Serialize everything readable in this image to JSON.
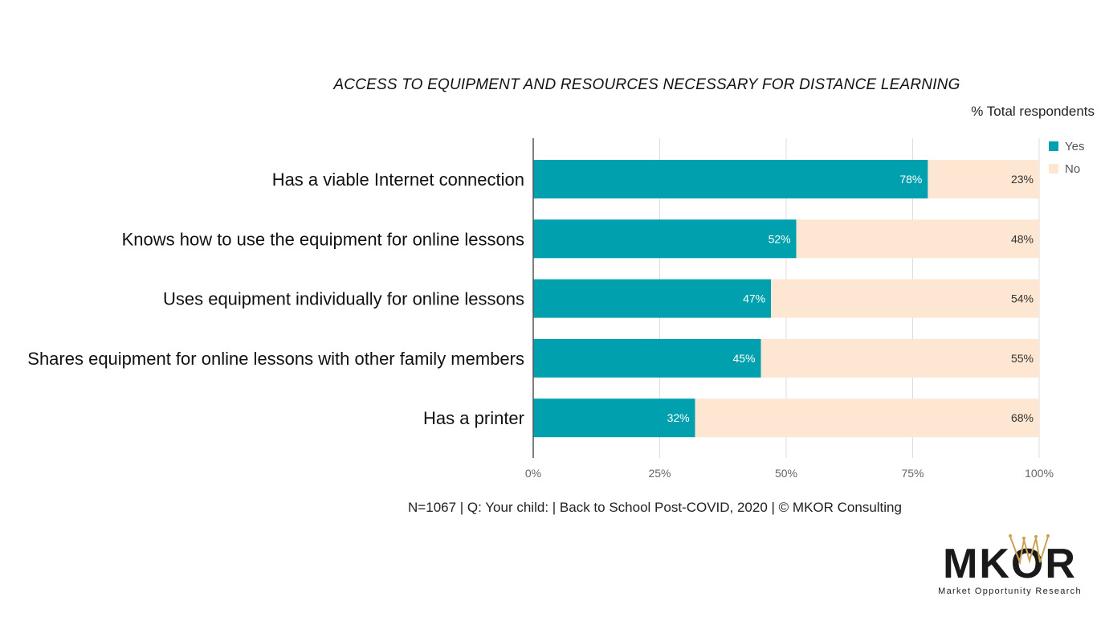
{
  "chart_data": {
    "type": "bar",
    "orientation": "horizontal",
    "stacked": true,
    "title": "ACCESS TO EQUIPMENT AND RESOURCES NECESSARY FOR DISTANCE LEARNING",
    "unit_label": "% Total respondents",
    "categories": [
      "Has a viable Internet connection",
      "Knows how to use the equipment for online lessons",
      "Uses equipment individually for online lessons",
      "Shares equipment for online lessons with other family members",
      "Has a printer"
    ],
    "series": [
      {
        "name": "Yes",
        "color": "#00A0AE",
        "values": [
          78,
          52,
          47,
          45,
          32
        ],
        "labels": [
          "78%",
          "52%",
          "47%",
          "45%",
          "32%"
        ]
      },
      {
        "name": "No",
        "color": "#FDE6D2",
        "values": [
          23,
          48,
          54,
          55,
          68
        ],
        "labels": [
          "23%",
          "48%",
          "54%",
          "55%",
          "68%"
        ]
      }
    ],
    "xlim": [
      0,
      100
    ],
    "xticks": [
      "0%",
      "25%",
      "50%",
      "75%",
      "100%"
    ],
    "grid": true,
    "legend": "top-right"
  },
  "footer": "N=1067 | Q: Your child: | Back to School Post-COVID, 2020 | © MKOR Consulting",
  "logo": {
    "word": "MKOR",
    "tagline": "Market Opportunity Research"
  }
}
